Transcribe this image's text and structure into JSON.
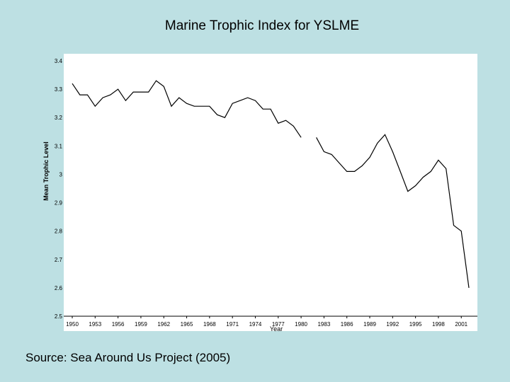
{
  "slide": {
    "title": "Marine Trophic Index for YSLME",
    "source": "Source: Sea Around Us Project (2005)"
  },
  "colors": {
    "background": "#bde0e3",
    "plot_background": "#ffffff",
    "line": "#000000"
  },
  "chart_data": {
    "type": "line",
    "title": "",
    "xlabel": "Year",
    "ylabel": "Mean Trophic Level",
    "xlim": [
      1950,
      2002
    ],
    "ylim": [
      2.5,
      3.4
    ],
    "yticks": [
      "2.5",
      "2.6",
      "2.7",
      "2.8",
      "2.9",
      "3",
      "3.1",
      "3.2",
      "3.3",
      "3.4"
    ],
    "xticks": [
      "1950",
      "1953",
      "1956",
      "1959",
      "1962",
      "1965",
      "1968",
      "1971",
      "1974",
      "1977",
      "1980",
      "1983",
      "1986",
      "1989",
      "1992",
      "1995",
      "1998",
      "2001"
    ],
    "grid": false,
    "legend": "none",
    "series": [
      {
        "x": [
          1950,
          1951,
          1952,
          1953,
          1954,
          1955,
          1956,
          1957,
          1958,
          1959,
          1960,
          1961,
          1962,
          1963,
          1964,
          1965,
          1966,
          1967,
          1968,
          1969,
          1970,
          1971,
          1972,
          1973,
          1974,
          1975,
          1976,
          1977,
          1978,
          1979,
          1980,
          1981,
          1982,
          1983,
          1984,
          1985,
          1986,
          1987,
          1988,
          1989,
          1990,
          1991,
          1992,
          1993,
          1994,
          1995,
          1996,
          1997,
          1998,
          1999,
          2000,
          2001,
          2002
        ],
        "y": [
          3.32,
          3.28,
          3.28,
          3.24,
          3.27,
          3.28,
          3.3,
          3.26,
          3.29,
          3.29,
          3.29,
          3.33,
          3.31,
          3.24,
          3.27,
          3.25,
          3.24,
          3.24,
          3.24,
          3.21,
          3.2,
          3.25,
          3.26,
          3.27,
          3.26,
          3.23,
          3.23,
          3.18,
          3.19,
          3.17,
          3.13,
          null,
          3.13,
          3.08,
          3.07,
          3.04,
          3.01,
          3.01,
          3.03,
          3.06,
          3.11,
          3.14,
          3.08,
          3.01,
          2.94,
          2.96,
          2.99,
          3.01,
          3.05,
          3.02,
          2.82,
          2.8,
          2.6
        ]
      }
    ]
  }
}
